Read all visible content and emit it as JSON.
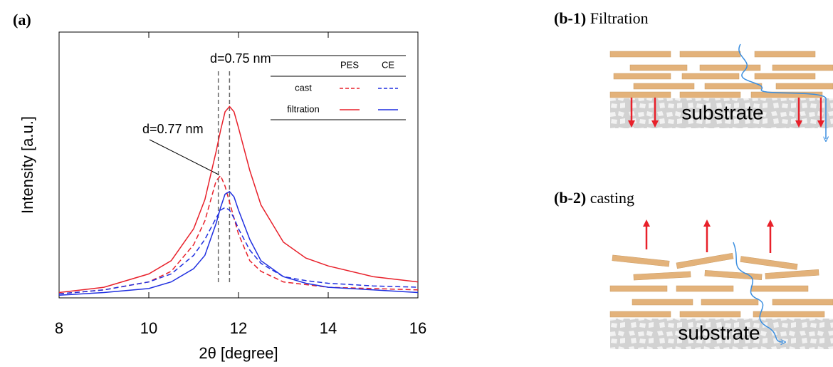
{
  "chart_data": {
    "type": "line",
    "panel_label": "(a)",
    "x_label": "2θ [degree]",
    "y_label": "Intensity [a.u.]",
    "xlim": [
      8,
      16
    ],
    "xticks": [
      8,
      10,
      12,
      14,
      16
    ],
    "ylim": [
      0,
      100
    ],
    "x": [
      8,
      9,
      10,
      10.5,
      11,
      11.25,
      11.5,
      11.6,
      11.7,
      11.8,
      11.9,
      12,
      12.25,
      12.5,
      13,
      13.5,
      14,
      15,
      16
    ],
    "legend_columns": [
      {
        "name": "PES",
        "color": "#e8202a"
      },
      {
        "name": "CE",
        "color": "#1f2fe0"
      }
    ],
    "series": [
      {
        "name": "cast",
        "line_style": "dashed",
        "values": [
          [
            1.5,
            3,
            6,
            10,
            20,
            29,
            44,
            46,
            42,
            36,
            30,
            24,
            14,
            10,
            6,
            5,
            4,
            3.5,
            3
          ],
          [
            1.5,
            3,
            6,
            9,
            16,
            22,
            30,
            33,
            34,
            33,
            30,
            26,
            18,
            13,
            8,
            6.5,
            5.5,
            4.5,
            4
          ]
        ]
      },
      {
        "name": "filtration",
        "line_style": "solid",
        "values": [
          [
            2,
            4,
            9,
            14,
            26,
            37,
            55,
            63,
            70,
            72,
            70,
            64,
            48,
            35,
            21,
            15,
            12,
            8,
            6
          ],
          [
            1,
            2,
            3.5,
            6,
            11,
            16,
            28,
            34,
            39,
            40,
            38,
            33,
            22,
            14,
            8,
            5.5,
            4,
            3,
            2
          ]
        ]
      }
    ],
    "reference_lines": [
      {
        "x": 11.8,
        "label": "d=0.75 nm"
      },
      {
        "x": 11.55,
        "label": "d=0.77 nm"
      }
    ]
  },
  "diagrams": [
    {
      "label": "(b-1)",
      "title": "Filtration",
      "substrate": "substrate"
    },
    {
      "label": "(b-2)",
      "title": "casting",
      "substrate": "substrate"
    }
  ]
}
